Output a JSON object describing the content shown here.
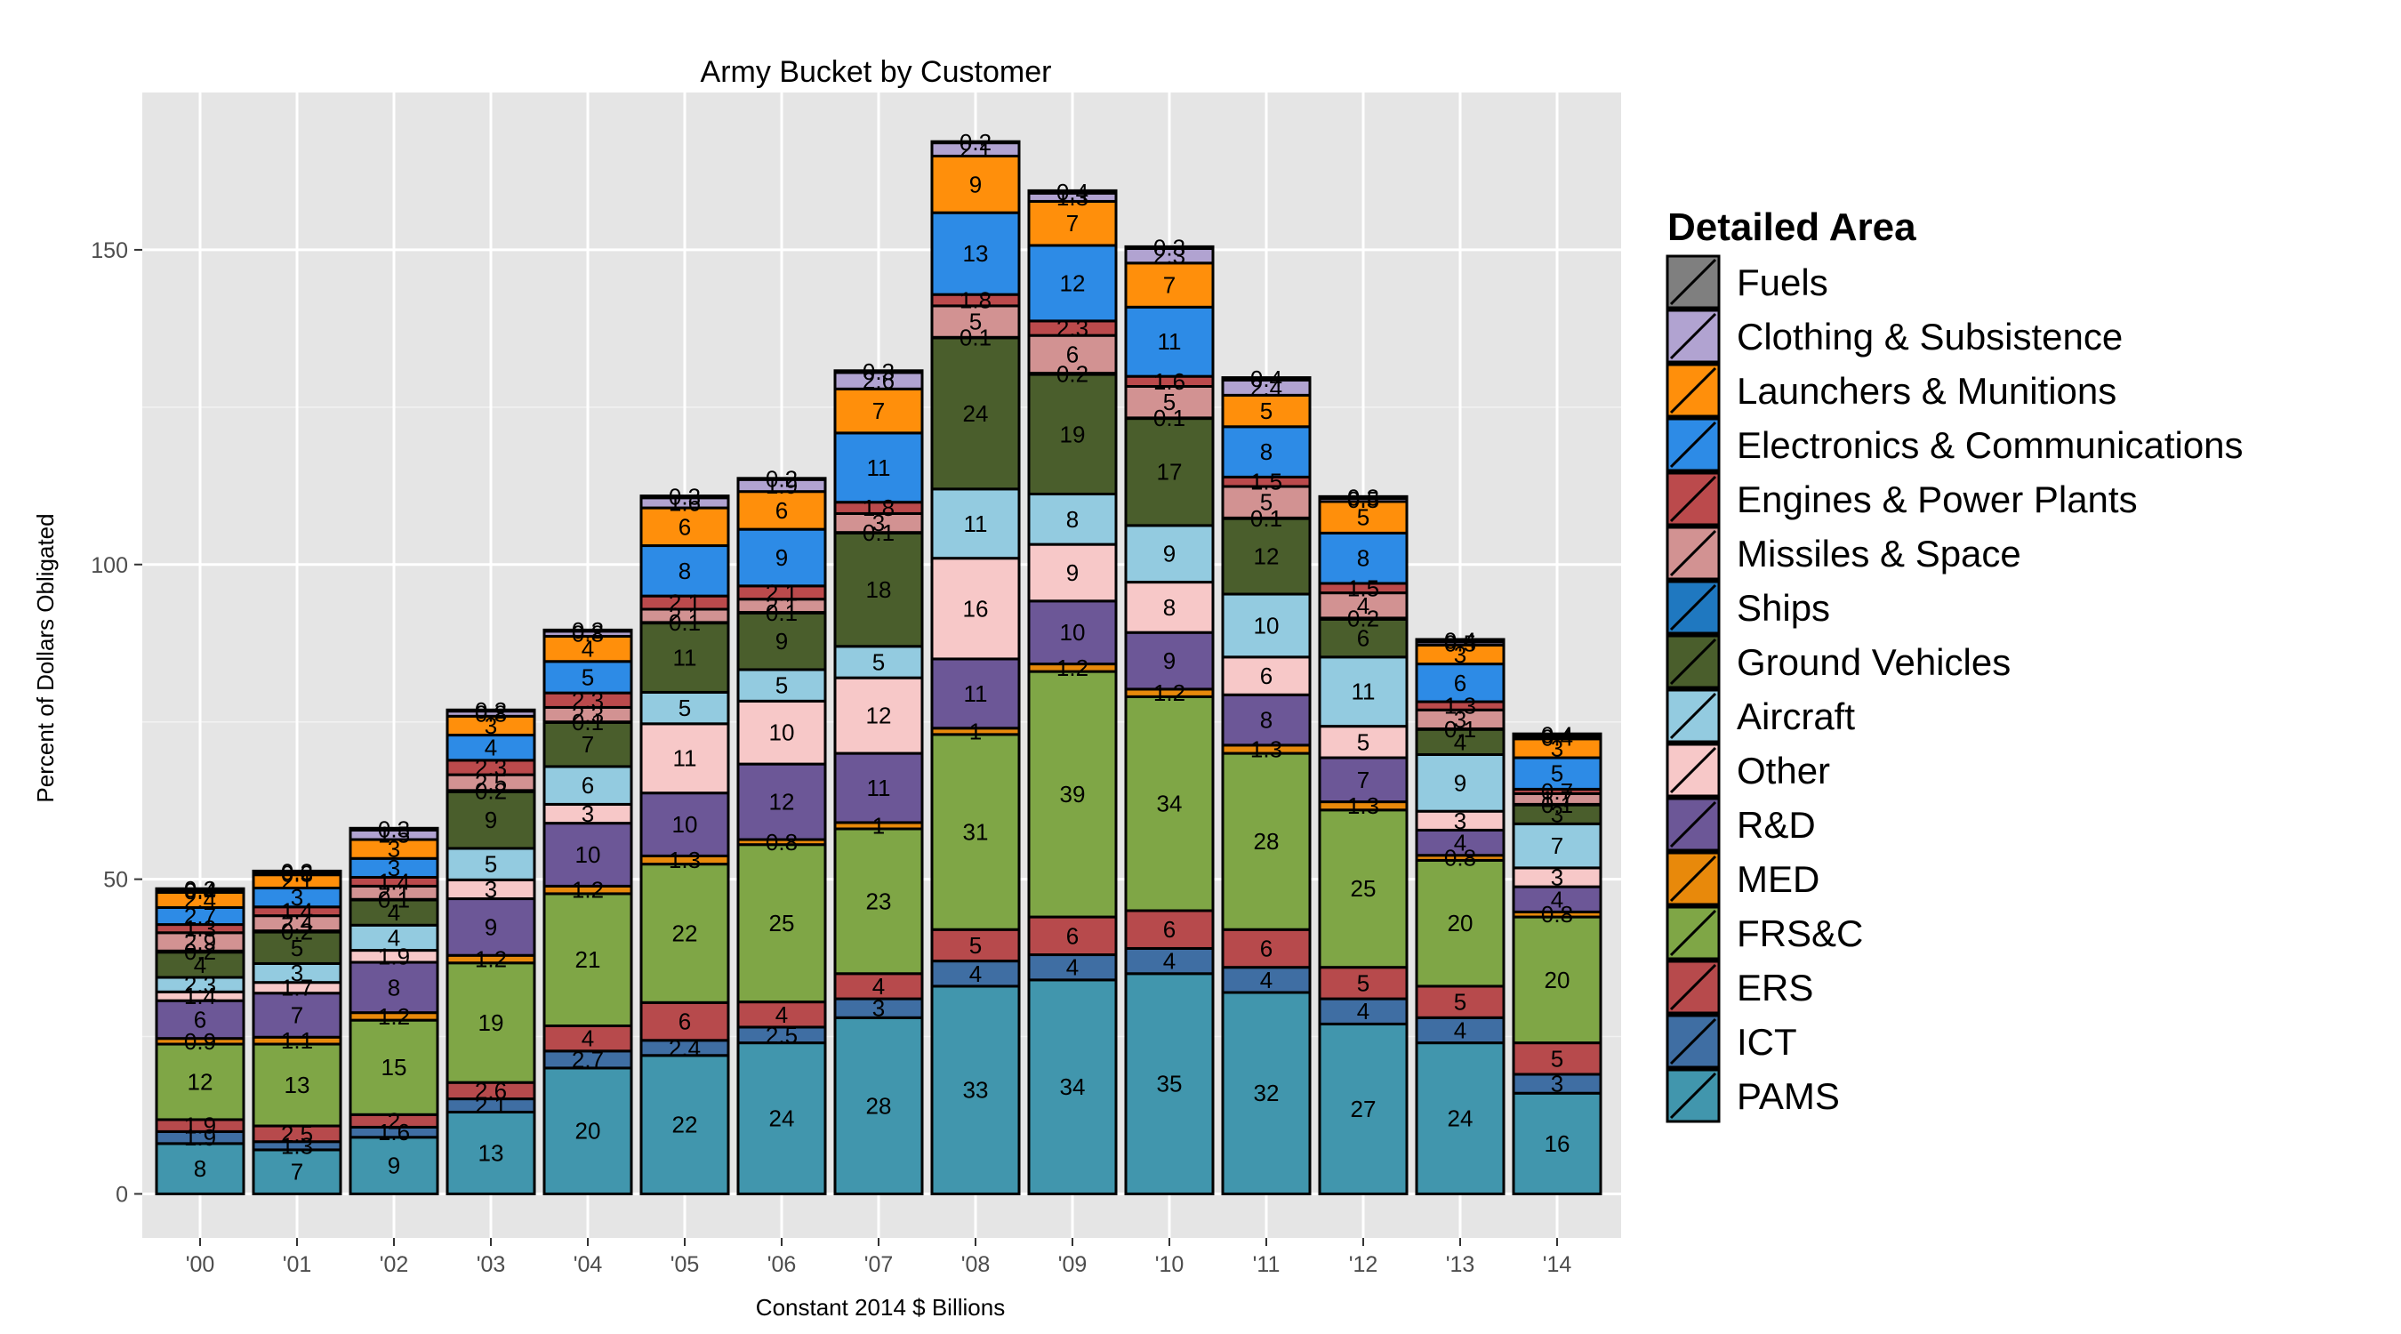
{
  "chart_data": {
    "type": "bar",
    "stacked": true,
    "title": "Army Bucket by Customer",
    "xlabel": "Constant 2014 $ Billions",
    "ylabel": "Percent of Dollars Obligated",
    "ylim": [
      -7,
      175
    ],
    "yticks": [
      0,
      50,
      100,
      150
    ],
    "grid": true,
    "legend_title": "Detailed Area",
    "legend_position": "right",
    "categories": [
      "'00",
      "'01",
      "'02",
      "'03",
      "'04",
      "'05",
      "'06",
      "'07",
      "'08",
      "'09",
      "'10",
      "'11",
      "'12",
      "'13",
      "'14"
    ],
    "series": [
      {
        "name": "PAMS",
        "color": "#4196ad",
        "values": [
          8,
          7,
          9,
          13,
          20,
          22,
          24,
          28,
          33,
          34,
          35,
          32,
          27,
          24,
          16
        ],
        "labels": [
          "8",
          "7",
          "9",
          "13",
          "20",
          "22",
          "24",
          "28",
          "33",
          "34",
          "35",
          "32",
          "27",
          "24",
          "16"
        ]
      },
      {
        "name": "ICT",
        "color": "#3f6ea3",
        "values": [
          1.9,
          1.3,
          1.6,
          2.1,
          2.7,
          2.4,
          2.5,
          3,
          4,
          4,
          4,
          4,
          4,
          4,
          3
        ],
        "labels": [
          "1.9",
          "1.3",
          "1.6",
          "2.1",
          "2.7",
          "2.4",
          "2.5",
          "3",
          "4",
          "4",
          "4",
          "4",
          "4",
          "4",
          "3"
        ]
      },
      {
        "name": "ERS",
        "color": "#b74a4c",
        "values": [
          1.9,
          2.5,
          2,
          2.6,
          4,
          6,
          4,
          4,
          5,
          6,
          6,
          6,
          5,
          5,
          5
        ],
        "labels": [
          "1.9",
          "2.5",
          "2",
          "2.6",
          "4",
          "6",
          "4",
          "4",
          "5",
          "6",
          "6",
          "6",
          "5",
          "5",
          "5"
        ]
      },
      {
        "name": "FRS&C",
        "color": "#7fa646",
        "values": [
          12,
          13,
          15,
          19,
          21,
          22,
          25,
          23,
          31,
          39,
          34,
          28,
          25,
          20,
          20
        ],
        "labels": [
          "12",
          "13",
          "15",
          "19",
          "21",
          "22",
          "25",
          "23",
          "31",
          "39",
          "34",
          "28",
          "25",
          "20",
          "20"
        ]
      },
      {
        "name": "MED",
        "color": "#e8890b",
        "values": [
          0.9,
          1.1,
          1.2,
          1.2,
          1.2,
          1.3,
          0.8,
          1,
          1,
          1.2,
          1.2,
          1.3,
          1.3,
          0.8,
          0.8
        ],
        "labels": [
          "0.9",
          "1.1",
          "1.2",
          "1.2",
          "1.2",
          "1.3",
          "0.8",
          "1",
          "1",
          "1.2",
          "1.2",
          "1.3",
          "1.3",
          "0.8",
          "0.8"
        ]
      },
      {
        "name": "R&D",
        "color": "#6c5797",
        "values": [
          6,
          7,
          8,
          9,
          10,
          10,
          12,
          11,
          11,
          10,
          9,
          8,
          7,
          4,
          4
        ],
        "labels": [
          "6",
          "7",
          "8",
          "9",
          "10",
          "10",
          "12",
          "11",
          "11",
          "10",
          "9",
          "8",
          "7",
          "4",
          "4"
        ]
      },
      {
        "name": "Other",
        "color": "#f7c8c8",
        "values": [
          1.4,
          1.7,
          1.9,
          3,
          3,
          11,
          10,
          12,
          16,
          9,
          8,
          6,
          5,
          3,
          3
        ],
        "labels": [
          "1.4",
          "1.7",
          "1.9",
          "3",
          "3",
          "11",
          "10",
          "12",
          "16",
          "9",
          "8",
          "6",
          "5",
          "3",
          "3"
        ]
      },
      {
        "name": "Aircraft",
        "color": "#93cbe0",
        "values": [
          2.3,
          3,
          4,
          5,
          6,
          5,
          5,
          5,
          11,
          8,
          9,
          10,
          11,
          9,
          7
        ],
        "labels": [
          "2.3",
          "3",
          "4",
          "5",
          "6",
          "5",
          "5",
          "5",
          "11",
          "8",
          "9",
          "10",
          "11",
          "9",
          "7"
        ]
      },
      {
        "name": "Ground Vehicles",
        "color": "#4a5e2c",
        "values": [
          4,
          5,
          4,
          9,
          7,
          11,
          9,
          18,
          24,
          19,
          17,
          12,
          6,
          4,
          3
        ],
        "labels": [
          "4",
          "5",
          "4",
          "9",
          "7",
          "11",
          "9",
          "18",
          "24",
          "19",
          "17",
          "12",
          "6",
          "4",
          "3"
        ]
      },
      {
        "name": "Ships",
        "color": "#1f78c0",
        "values": [
          0.2,
          0.2,
          0.1,
          0.2,
          0.1,
          0.1,
          0.1,
          0.1,
          0.1,
          0.2,
          0.1,
          0.1,
          0.2,
          0.1,
          0.1
        ],
        "labels": [
          "0.2",
          "0.2",
          "0.1",
          "0.2",
          "0.1",
          "0.1",
          "0.1",
          "0.1",
          "0.1",
          "0.2",
          "0.1",
          "0.1",
          "0.2",
          "0.1",
          "0.1"
        ]
      },
      {
        "name": "Missiles & Space",
        "color": "#d29292",
        "values": [
          2.9,
          2.4,
          2.1,
          2.5,
          2.3,
          2.1,
          2.1,
          3,
          5,
          6,
          5,
          5,
          4,
          3,
          1.7
        ],
        "labels": [
          "2.9",
          "2.4",
          "2.1",
          "2.5",
          "2.3",
          "2.1",
          "2.1",
          "3",
          "5",
          "6",
          "5",
          "5",
          "4",
          "3",
          "1.7"
        ]
      },
      {
        "name": "Engines & Power Plants",
        "color": "#bb4a4c",
        "values": [
          1.3,
          1.4,
          1.4,
          2.3,
          2.3,
          2.1,
          2.1,
          1.8,
          1.8,
          2.3,
          1.6,
          1.5,
          1.5,
          1.3,
          0.7
        ],
        "labels": [
          "1.3",
          "1.4",
          "1.4",
          "2.3",
          "2.3",
          "2.1",
          "2.1",
          "1.8",
          "1.8",
          "2.3",
          "1.6",
          "1.5",
          "1.5",
          "1.3",
          "0.7"
        ]
      },
      {
        "name": "Electronics & Communications",
        "color": "#2d8be6",
        "values": [
          2.7,
          3,
          3,
          4,
          5,
          8,
          9,
          11,
          13,
          12,
          11,
          8,
          8,
          6,
          5
        ],
        "labels": [
          "2.7",
          "3",
          "3",
          "4",
          "5",
          "8",
          "9",
          "11",
          "13",
          "12",
          "11",
          "8",
          "8",
          "6",
          "5"
        ]
      },
      {
        "name": "Launchers & Munitions",
        "color": "#ff8f0b",
        "values": [
          2.4,
          2.1,
          3,
          3,
          4,
          6,
          6,
          7,
          9,
          7,
          7,
          5,
          5,
          3,
          3
        ],
        "labels": [
          "2.4",
          "2.1",
          "3",
          "3",
          "4",
          "6",
          "6",
          "7",
          "9",
          "7",
          "7",
          "5",
          "5",
          "3",
          "3"
        ]
      },
      {
        "name": "Clothing & Subsistence",
        "color": "#b1a3d1",
        "values": [
          0.4,
          0.3,
          1.5,
          0.8,
          0.8,
          1.6,
          1.9,
          2.6,
          2.1,
          1.3,
          2.3,
          2.4,
          0.5,
          0.5,
          0.4
        ],
        "labels": [
          "0.4",
          "0.3",
          "1.5",
          "0.8",
          "0.8",
          "1.6",
          "1.9",
          "2.6",
          "2.1",
          "1.3",
          "2.3",
          "2.4",
          "0.5",
          "0.5",
          "0.4"
        ]
      },
      {
        "name": "Fuels",
        "color": "#7f7f7f",
        "values": [
          0.2,
          0.3,
          0.3,
          0.2,
          0.2,
          0.3,
          0.2,
          0.3,
          0.2,
          0.4,
          0.3,
          0.4,
          0.3,
          0.4,
          0.4
        ],
        "labels": [
          "0.2",
          "0.3",
          "0.3",
          "0.2",
          "0.2",
          "0.3",
          "0.2",
          "0.3",
          "0.2",
          "0.4",
          "0.3",
          "0.4",
          "0.3",
          "0.4",
          "0.4"
        ]
      }
    ]
  }
}
